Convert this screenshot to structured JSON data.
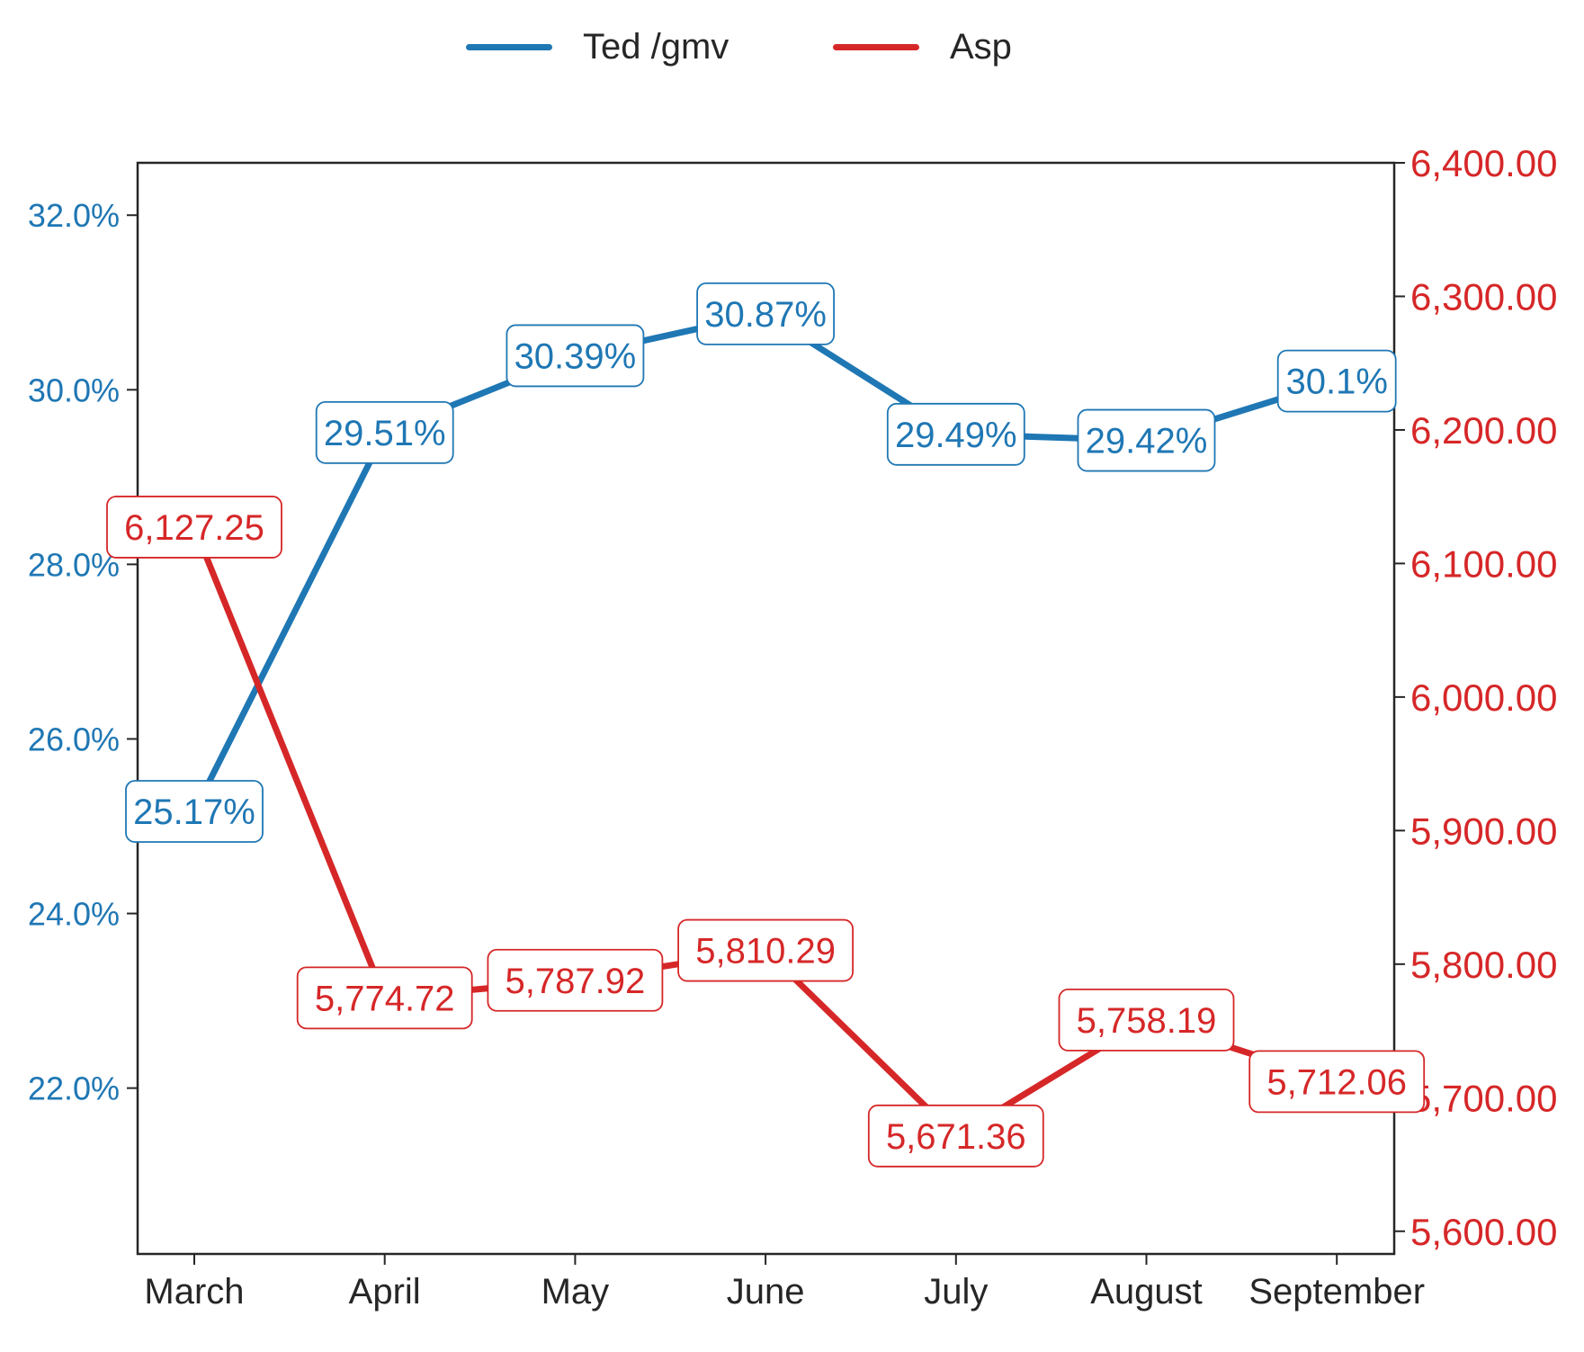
{
  "legend": {
    "series_1": "Ted /gmv",
    "series_2": "Asp"
  },
  "colors": {
    "series_1": "#1f77b4",
    "series_2": "#d62728",
    "axis": "#262626",
    "background": "#ffffff"
  },
  "chart_data": {
    "type": "line",
    "title": "",
    "xlabel": "",
    "ylabel_left": "",
    "ylabel_right": "",
    "categories": [
      "March",
      "April",
      "May",
      "June",
      "July",
      "August",
      "September"
    ],
    "series": [
      {
        "name": "Ted /gmv",
        "axis": "left",
        "values": [
          25.17,
          29.51,
          30.39,
          30.87,
          29.49,
          29.42,
          30.1
        ],
        "labels": [
          "25.17%",
          "29.51%",
          "30.39%",
          "30.87%",
          "29.49%",
          "29.42%",
          "30.1%"
        ]
      },
      {
        "name": "Asp",
        "axis": "right",
        "values": [
          6127.25,
          5774.72,
          5787.92,
          5810.29,
          5671.36,
          5758.19,
          5712.06
        ],
        "labels": [
          "6,127.25",
          "5,774.72",
          "5,787.92",
          "5,810.29",
          "5,671.36",
          "5,758.19",
          "5,712.06"
        ]
      }
    ],
    "y_left": {
      "ylim": [
        20.1,
        32.6
      ],
      "ticks": [
        22,
        24,
        26,
        28,
        30,
        32
      ],
      "tick_labels": [
        "22.0%",
        "24.0%",
        "26.0%",
        "28.0%",
        "30.0%",
        "32.0%"
      ]
    },
    "y_right": {
      "ylim": [
        5583,
        6400
      ],
      "ticks": [
        5600,
        5700,
        5800,
        5900,
        6000,
        6100,
        6200,
        6300,
        6400
      ],
      "tick_labels": [
        "5,600.00",
        "5,700.00",
        "5,800.00",
        "5,900.00",
        "6,000.00",
        "6,100.00",
        "6,200.00",
        "6,300.00",
        "6,400.00"
      ]
    },
    "grid": false,
    "legend_position": "top-center"
  }
}
